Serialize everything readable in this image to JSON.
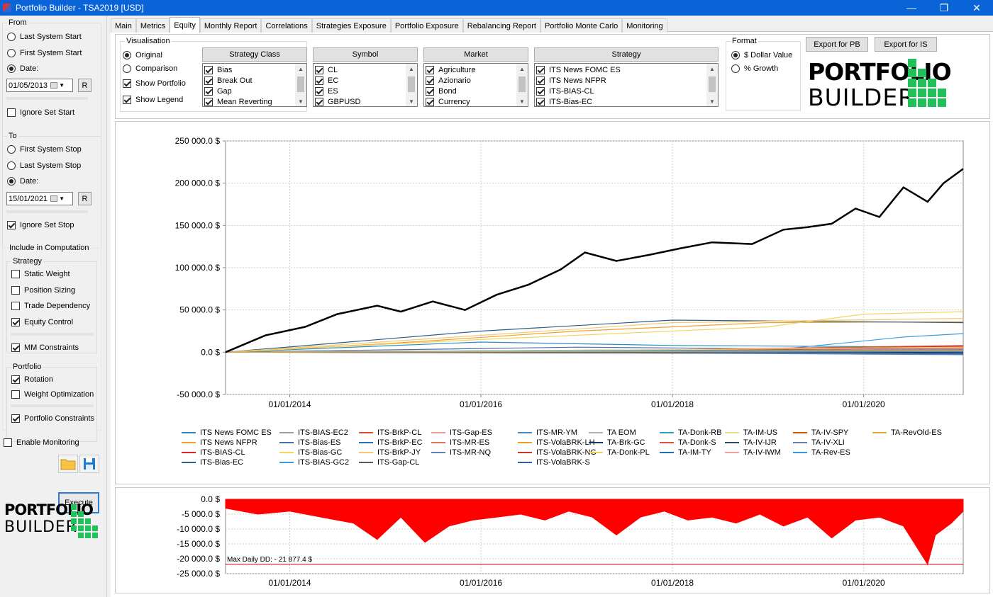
{
  "window": {
    "title": "Portfolio Builder - TSA2019 [USD]",
    "buttons": {
      "minimize": "—",
      "maximize": "❐",
      "close": "✕"
    }
  },
  "left_panel": {
    "from": {
      "title": "From",
      "options": [
        "Last System Start",
        "First System Start",
        "Date:"
      ],
      "selected": "Date:",
      "date": "01/05/2013",
      "reset_label": "R",
      "ignore_label": "Ignore Set Start",
      "ignore_checked": false
    },
    "to": {
      "title": "To",
      "options": [
        "First System Stop",
        "Last System Stop",
        "Date:"
      ],
      "selected": "Date:",
      "date": "15/01/2021",
      "reset_label": "R",
      "ignore_label": "Ignore Set Stop",
      "ignore_checked": true
    },
    "computation": {
      "title": "Include in Computation",
      "strategy_title": "Strategy",
      "strategy_items": [
        {
          "label": "Static Weight",
          "checked": false
        },
        {
          "label": "Position Sizing",
          "checked": false
        },
        {
          "label": "Trade Dependency",
          "checked": false
        },
        {
          "label": "Equity Control",
          "checked": true
        }
      ],
      "mm_label": "MM Constraints",
      "mm_checked": true,
      "portfolio_title": "Portfolio",
      "portfolio_items": [
        {
          "label": "Rotation",
          "checked": true
        },
        {
          "label": "Weight Optimization",
          "checked": false
        }
      ],
      "constraints_label": "Portfolio Constraints",
      "constraints_checked": true
    },
    "monitoring_label": "Enable Monitoring",
    "monitoring_checked": false,
    "execute_label": "Execute",
    "open_icon": "folder-icon",
    "save_icon": "save-icon"
  },
  "logo": {
    "line1": "PORTFOLIO",
    "line2": "BUILDER",
    "color": "#22c05a"
  },
  "tabs": [
    "Main",
    "Metrics",
    "Equity",
    "Monthly Report",
    "Correlations",
    "Strategies Exposure",
    "Portfolio Exposure",
    "Rebalancing Report",
    "Portfolio Monte Carlo",
    "Monitoring"
  ],
  "active_tab": "Equity",
  "visualisation": {
    "title": "Visualisation",
    "original_label": "Original",
    "comparison_label": "Comparison",
    "selected": "Original",
    "show_portfolio_label": "Show Portfolio",
    "show_portfolio": true,
    "show_legend_label": "Show Legend",
    "show_legend": true
  },
  "filters": [
    {
      "header": "Strategy Class",
      "items": [
        "Bias",
        "Break Out",
        "Gap",
        "Mean Reverting"
      ]
    },
    {
      "header": "Symbol",
      "items": [
        "CL",
        "EC",
        "ES",
        "GBPUSD"
      ]
    },
    {
      "header": "Market",
      "items": [
        "Agriculture",
        "Azionario",
        "Bond",
        "Currency"
      ]
    },
    {
      "header": "Strategy",
      "items": [
        "ITS News FOMC ES",
        "ITS News NFPR",
        "ITS-BIAS-CL",
        "ITS-Bias-EC"
      ]
    }
  ],
  "format": {
    "title": "Format",
    "options": [
      "$ Dollar Value",
      "% Growth"
    ],
    "selected": "$ Dollar Value"
  },
  "export": {
    "pb_label": "Export for PB",
    "is_label": "Export for IS"
  },
  "chart_data": [
    {
      "type": "line",
      "title": "",
      "xlabel": "",
      "ylabel": "",
      "x_ticks": [
        "01/01/2014",
        "01/01/2016",
        "01/01/2018",
        "01/01/2020"
      ],
      "y_ticks": [
        "250 000.0 $",
        "200 000.0 $",
        "150 000.0 $",
        "100 000.0 $",
        "50 000.0 $",
        "0.0 $",
        "-50 000.0 $"
      ],
      "xlim": [
        "01/05/2013",
        "15/01/2021"
      ],
      "ylim": [
        -50000,
        250000
      ],
      "grid": true,
      "legend_position": "bottom",
      "portfolio_color": "#000000",
      "series": [
        {
          "name": "Portfolio",
          "color": "#000000",
          "x": [
            "01/05/2013",
            "01/10/2013",
            "01/03/2014",
            "01/07/2014",
            "01/12/2014",
            "01/03/2015",
            "01/07/2015",
            "01/11/2015",
            "01/03/2016",
            "01/07/2016",
            "01/11/2016",
            "01/02/2017",
            "01/06/2017",
            "01/10/2017",
            "01/02/2018",
            "01/06/2018",
            "01/11/2018",
            "01/03/2019",
            "01/06/2019",
            "01/09/2019",
            "01/12/2019",
            "01/03/2020",
            "01/06/2020",
            "01/09/2020",
            "01/11/2020",
            "15/01/2021"
          ],
          "values": [
            0,
            20000,
            30000,
            45000,
            55000,
            48000,
            60000,
            50000,
            68000,
            80000,
            98000,
            118000,
            108000,
            115000,
            123000,
            130000,
            128000,
            145000,
            148000,
            152000,
            170000,
            160000,
            195000,
            178000,
            200000,
            217000
          ]
        },
        {
          "name": "ITS News FOMC ES",
          "color": "#2e8bc0",
          "x": [
            "01/05/2013",
            "01/01/2016",
            "01/01/2018",
            "15/01/2021"
          ],
          "values": [
            0,
            12000,
            8000,
            6000
          ]
        },
        {
          "name": "ITS News NFPR",
          "color": "#f0a030",
          "x": [
            "01/05/2013",
            "01/01/2015",
            "01/01/2017",
            "01/01/2019",
            "15/01/2021"
          ],
          "values": [
            0,
            10000,
            25000,
            35000,
            36000
          ]
        },
        {
          "name": "ITS-BIAS-CL",
          "color": "#d62728",
          "x": [
            "01/05/2013",
            "01/01/2017",
            "15/01/2021"
          ],
          "values": [
            0,
            2000,
            4000
          ]
        },
        {
          "name": "ITS-Bias-EC",
          "color": "#2b5f8a",
          "x": [
            "01/05/2013",
            "01/01/2016",
            "01/01/2018",
            "15/01/2021"
          ],
          "values": [
            0,
            25000,
            38000,
            35000
          ]
        },
        {
          "name": "ITS-BIAS-EC2",
          "color": "#a0a0a0",
          "x": [
            "01/05/2013",
            "01/01/2017",
            "15/01/2021"
          ],
          "values": [
            0,
            1000,
            3000
          ]
        },
        {
          "name": "ITS-Bias-ES",
          "color": "#4a6fa5",
          "x": [
            "01/05/2013",
            "01/01/2017",
            "15/01/2021"
          ],
          "values": [
            0,
            6000,
            2000
          ]
        },
        {
          "name": "ITS-Bias-GC",
          "color": "#f4d35e",
          "x": [
            "01/05/2013",
            "01/01/2016",
            "01/01/2019",
            "01/01/2020",
            "15/01/2021"
          ],
          "values": [
            0,
            15000,
            30000,
            45000,
            48000
          ]
        },
        {
          "name": "ITS-BIAS-GC2",
          "color": "#3b9ddd",
          "x": [
            "01/05/2013",
            "01/01/2019",
            "01/06/2020",
            "15/01/2021"
          ],
          "values": [
            0,
            2000,
            18000,
            22000
          ]
        },
        {
          "name": "ITS-BrkP-CL",
          "color": "#e0502f",
          "x": [
            "01/05/2013",
            "01/01/2018",
            "15/01/2021"
          ],
          "values": [
            0,
            3000,
            8000
          ]
        },
        {
          "name": "ITS-BrkP-EC",
          "color": "#1f77b4",
          "x": [
            "01/05/2013",
            "01/01/2018",
            "15/01/2021"
          ],
          "values": [
            0,
            1000,
            -2000
          ]
        },
        {
          "name": "ITS-BrkP-JY",
          "color": "#f7c873",
          "x": [
            "01/05/2013",
            "01/01/2016",
            "01/01/2018",
            "15/01/2021"
          ],
          "values": [
            0,
            20000,
            35000,
            40000
          ]
        },
        {
          "name": "ITS-Gap-CL",
          "color": "#5a5a5a",
          "x": [
            "01/05/2013",
            "01/01/2018",
            "15/01/2021"
          ],
          "values": [
            0,
            0,
            2000
          ]
        },
        {
          "name": "ITS-Gap-ES",
          "color": "#e8a090",
          "x": [
            "01/05/2013",
            "01/01/2018",
            "15/01/2021"
          ],
          "values": [
            0,
            2000,
            5000
          ]
        },
        {
          "name": "ITS-MR-ES",
          "color": "#e07060",
          "x": [
            "01/05/2013",
            "01/01/2018",
            "15/01/2021"
          ],
          "values": [
            0,
            1000,
            6000
          ]
        },
        {
          "name": "ITS-MR-NQ",
          "color": "#5e7fb5",
          "x": [
            "01/05/2013",
            "01/01/2018",
            "15/01/2021"
          ],
          "values": [
            0,
            -1000,
            -3000
          ]
        },
        {
          "name": "ITS-MR-YM",
          "color": "#3c8fd0",
          "x": [
            "01/05/2013",
            "01/01/2018",
            "15/01/2021"
          ],
          "values": [
            0,
            2000,
            1000
          ]
        },
        {
          "name": "ITS-VolaBRK-LH",
          "color": "#e8a020",
          "x": [
            "01/05/2013",
            "01/01/2018",
            "15/01/2021"
          ],
          "values": [
            0,
            3000,
            5000
          ]
        },
        {
          "name": "ITS-VolaBRK-NG",
          "color": "#c0392b",
          "x": [
            "01/05/2013",
            "01/01/2018",
            "15/01/2021"
          ],
          "values": [
            0,
            2000,
            7000
          ]
        },
        {
          "name": "ITS-VolaBRK-S",
          "color": "#2d5fa0",
          "x": [
            "01/05/2013",
            "01/01/2018",
            "15/01/2021"
          ],
          "values": [
            0,
            0,
            -1000
          ]
        },
        {
          "name": "TA EOM",
          "color": "#b0b0b0",
          "x": [
            "01/05/2013",
            "01/01/2018",
            "15/01/2021"
          ],
          "values": [
            0,
            1000,
            2000
          ]
        },
        {
          "name": "TA-Brk-GC",
          "color": "#1a3a5c",
          "x": [
            "01/05/2013",
            "01/01/2018",
            "15/01/2021"
          ],
          "values": [
            0,
            -1000,
            0
          ]
        },
        {
          "name": "TA-Donk-PL",
          "color": "#f0d060",
          "x": [
            "01/05/2013",
            "01/01/2018",
            "15/01/2021"
          ],
          "values": [
            0,
            2000,
            4000
          ]
        },
        {
          "name": "TA-Donk-RB",
          "color": "#2aa3c8",
          "x": [
            "01/05/2013",
            "01/01/2018",
            "15/01/2021"
          ],
          "values": [
            0,
            1000,
            3000
          ]
        },
        {
          "name": "TA-Donk-S",
          "color": "#e05040",
          "x": [
            "01/05/2013",
            "01/01/2018",
            "15/01/2021"
          ],
          "values": [
            0,
            2000,
            5000
          ]
        },
        {
          "name": "TA-IM-TY",
          "color": "#1f6fb0",
          "x": [
            "01/05/2013",
            "01/01/2018",
            "15/01/2021"
          ],
          "values": [
            0,
            0,
            -2000
          ]
        },
        {
          "name": "TA-IM-US",
          "color": "#f2d98a",
          "x": [
            "01/05/2013",
            "01/01/2018",
            "15/01/2021"
          ],
          "values": [
            0,
            3000,
            6000
          ]
        },
        {
          "name": "TA-IV-IJR",
          "color": "#34495e",
          "x": [
            "01/05/2013",
            "01/01/2018",
            "15/01/2021"
          ],
          "values": [
            0,
            1000,
            2000
          ]
        },
        {
          "name": "TA-IV-IWM",
          "color": "#f0a0a0",
          "x": [
            "01/05/2013",
            "01/01/2018",
            "15/01/2021"
          ],
          "values": [
            0,
            1000,
            4000
          ]
        },
        {
          "name": "TA-IV-SPY",
          "color": "#d35400",
          "x": [
            "01/05/2013",
            "01/01/2018",
            "15/01/2021"
          ],
          "values": [
            0,
            1000,
            3000
          ]
        },
        {
          "name": "TA-IV-XLI",
          "color": "#6b7fa3",
          "x": [
            "01/05/2013",
            "01/01/2018",
            "15/01/2021"
          ],
          "values": [
            0,
            0,
            1000
          ]
        },
        {
          "name": "TA-Rev-ES",
          "color": "#3498db",
          "x": [
            "01/05/2013",
            "01/01/2018",
            "15/01/2021"
          ],
          "values": [
            0,
            2000,
            3000
          ]
        },
        {
          "name": "TA-RevOld-ES",
          "color": "#e8a838",
          "x": [
            "01/05/2013",
            "01/01/2018",
            "15/01/2021"
          ],
          "values": [
            0,
            1000,
            2000
          ]
        }
      ]
    },
    {
      "type": "area",
      "title": "",
      "x_ticks": [
        "01/01/2014",
        "01/01/2016",
        "01/01/2018",
        "01/01/2020"
      ],
      "y_ticks": [
        "0.0 $",
        "-5 000.0 $",
        "-10 000.0 $",
        "-15 000.0 $",
        "-20 000.0 $",
        "-25 000.0 $"
      ],
      "ylim": [
        -25000,
        0
      ],
      "grid": true,
      "color": "#ff0000",
      "annotation": "Max Daily DD: - 21 877.4 $",
      "max_dd": -21877.4,
      "series": [
        {
          "x": [
            "01/05/2013",
            "01/09/2013",
            "01/01/2014",
            "01/05/2014",
            "01/09/2014",
            "01/12/2014",
            "01/03/2015",
            "01/06/2015",
            "01/09/2015",
            "01/12/2015",
            "01/03/2016",
            "01/06/2016",
            "01/09/2016",
            "01/12/2016",
            "01/03/2017",
            "01/06/2017",
            "01/09/2017",
            "01/12/2017",
            "01/03/2018",
            "01/06/2018",
            "01/09/2018",
            "01/12/2018",
            "01/03/2019",
            "01/06/2019",
            "01/09/2019",
            "01/12/2019",
            "01/03/2020",
            "01/06/2020",
            "01/09/2020",
            "01/10/2020",
            "01/12/2020",
            "15/01/2021"
          ],
          "values": [
            -3000,
            -5000,
            -4000,
            -6000,
            -8000,
            -13500,
            -6000,
            -14500,
            -9000,
            -7000,
            -6000,
            -5000,
            -7000,
            -4000,
            -6000,
            -12000,
            -6000,
            -4000,
            -7000,
            -6000,
            -8000,
            -5000,
            -9000,
            -6000,
            -13000,
            -7000,
            -6000,
            -9000,
            -21877.4,
            -12000,
            -8000,
            -4000
          ]
        }
      ]
    }
  ]
}
